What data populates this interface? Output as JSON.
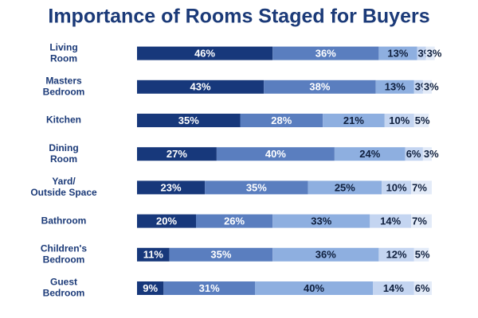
{
  "chart_data": {
    "type": "stacked_bar_horizontal",
    "title": "Importance of Rooms Staged for Buyers",
    "categories": [
      [
        "Living",
        "Room"
      ],
      [
        "Masters",
        "Bedroom"
      ],
      [
        "Kitchen"
      ],
      [
        "Dining",
        "Room"
      ],
      [
        "Yard/",
        "Outside Space"
      ],
      [
        "Bathroom"
      ],
      [
        "Children's",
        "Bedroom"
      ],
      [
        "Guest",
        "Bedroom"
      ]
    ],
    "xlim": [
      0,
      100
    ],
    "series": [
      {
        "color": "#17387b",
        "values": [
          46,
          43,
          35,
          27,
          23,
          20,
          11,
          9
        ],
        "value_labels": [
          "46%",
          "43%",
          "35%",
          "27%",
          "23%",
          "20%",
          "11%",
          "9%"
        ]
      },
      {
        "color": "#5a7ebf",
        "values": [
          36,
          38,
          28,
          40,
          35,
          26,
          35,
          31
        ],
        "value_labels": [
          "36%",
          "38%",
          "28%",
          "40%",
          "35%",
          "26%",
          "35%",
          "31%"
        ]
      },
      {
        "color": "#8eafe0",
        "values": [
          13,
          13,
          21,
          24,
          25,
          33,
          36,
          40
        ],
        "value_labels": [
          "13%",
          "13%",
          "21%",
          "24%",
          "25%",
          "33%",
          "36%",
          "40%"
        ]
      },
      {
        "color": "#c4d5f1",
        "values": [
          3,
          3,
          10,
          6,
          10,
          14,
          12,
          14
        ],
        "value_labels": [
          "3%",
          "3%",
          "10%",
          "6%",
          "10%",
          "14%",
          "12%",
          "14%"
        ]
      },
      {
        "color": "#e3ebf8",
        "values": [
          3,
          3,
          5,
          3,
          7,
          7,
          5,
          6
        ],
        "value_labels": [
          "3%",
          "3%",
          "5%",
          "3%",
          "7%",
          "7%",
          "5%",
          "6%"
        ]
      }
    ]
  }
}
